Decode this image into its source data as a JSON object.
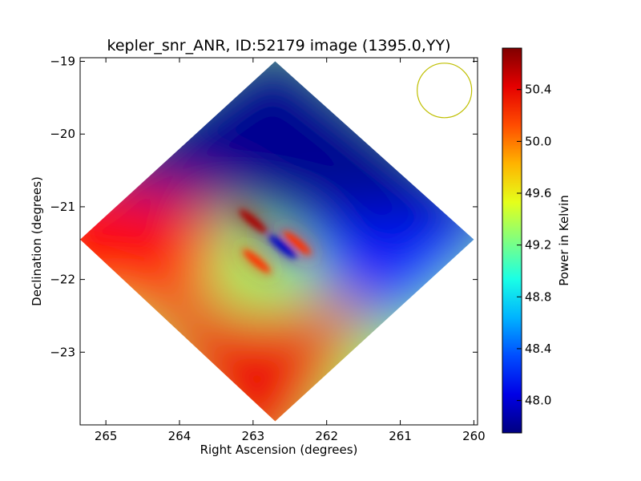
{
  "chart_data": {
    "type": "heatmap",
    "title": "kepler_snr_ANR, ID:52179 image (1395.0,YY)",
    "xlabel": "Right Ascension (degrees)",
    "ylabel": "Declination (degrees)",
    "xlim": [
      265.35,
      259.95
    ],
    "ylim": [
      -24.0,
      -18.95
    ],
    "xticks": [
      265,
      264,
      263,
      262,
      261,
      260
    ],
    "xtick_labels": [
      "265",
      "264",
      "263",
      "262",
      "261",
      "260"
    ],
    "yticks": [
      -19,
      -20,
      -21,
      -22,
      -23
    ],
    "ytick_labels": [
      "−19",
      "−20",
      "−21",
      "−22",
      "−23"
    ],
    "colorbar": {
      "label": "Power in Kelvin",
      "colormap": "jet",
      "range": [
        47.75,
        50.72
      ],
      "ticks": [
        48.0,
        48.4,
        48.8,
        49.2,
        49.6,
        50.0,
        50.4
      ],
      "tick_labels": [
        "48.0",
        "48.4",
        "48.8",
        "49.2",
        "49.6",
        "50.0",
        "50.4"
      ]
    },
    "image_footprint_corners": [
      {
        "ra": 262.7,
        "dec": -19.0
      },
      {
        "ra": 260.0,
        "dec": -21.45
      },
      {
        "ra": 262.7,
        "dec": -23.95
      },
      {
        "ra": 265.35,
        "dec": -21.45
      }
    ],
    "value_regions": [
      {
        "region": "north",
        "level": 47.8
      },
      {
        "region": "east",
        "level": 48.2
      },
      {
        "region": "west",
        "level": 50.3
      },
      {
        "region": "south",
        "level": 50.4
      },
      {
        "region": "center",
        "level": 49.3
      }
    ],
    "features": [
      {
        "ra": 263.0,
        "dec": -21.2,
        "level": 50.6
      },
      {
        "ra": 262.95,
        "dec": -21.75,
        "level": 50.2
      },
      {
        "ra": 262.4,
        "dec": -21.5,
        "level": 50.2
      },
      {
        "ra": 262.6,
        "dec": -21.55,
        "level": 47.95
      }
    ],
    "beam_circle": {
      "ra": 260.4,
      "dec": -19.4,
      "color": "#bfbf00"
    }
  }
}
